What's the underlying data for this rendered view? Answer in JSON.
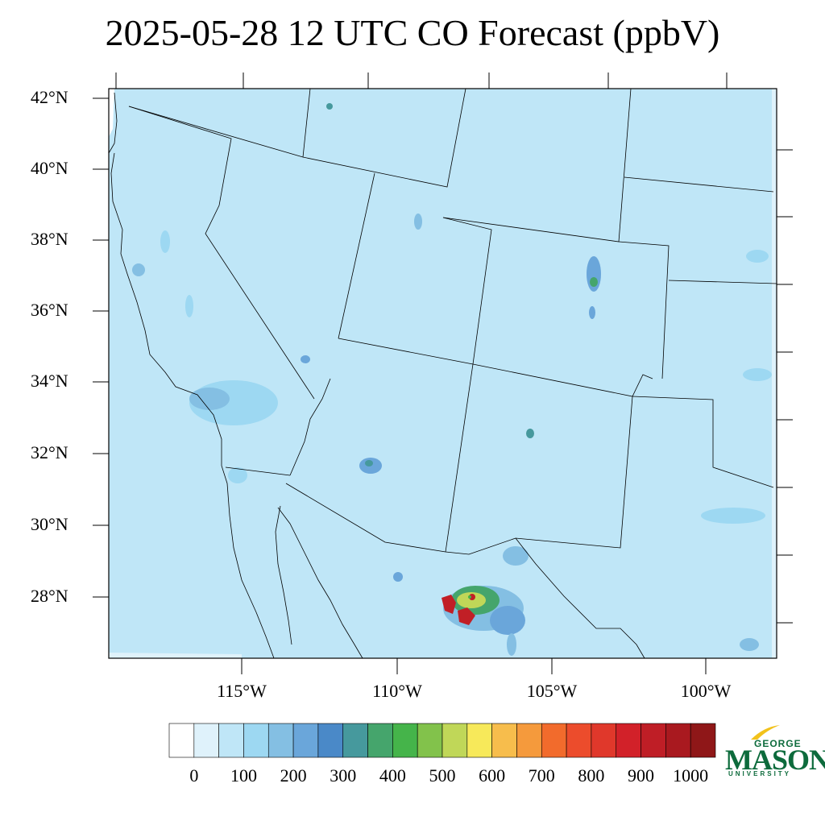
{
  "title": "2025-05-28 12 UTC CO Forecast (ppbV)",
  "axes": {
    "lat_labels": [
      "42°N",
      "40°N",
      "38°N",
      "36°N",
      "34°N",
      "32°N",
      "30°N",
      "28°N"
    ],
    "lon_labels": [
      "115°W",
      "110°W",
      "105°W",
      "100°W"
    ]
  },
  "colorbar": {
    "labels": [
      "0",
      "100",
      "200",
      "300",
      "400",
      "500",
      "600",
      "700",
      "800",
      "900",
      "1000"
    ],
    "colors": [
      "#ffffff",
      "#dff2fb",
      "#bfe6f7",
      "#9dd8f2",
      "#84bfe3",
      "#6aa6da",
      "#4a89c8",
      "#46999d",
      "#45a56c",
      "#45b44a",
      "#82c24b",
      "#c0d758",
      "#f7e95a",
      "#f7bd4c",
      "#f59a3c",
      "#f26b2c",
      "#ec4c2c",
      "#e0382b",
      "#d22129",
      "#bf1e26",
      "#a9191f",
      "#8f1718"
    ]
  },
  "map": {
    "background_color": "#bfe6f7",
    "hotspot_color": "#c11f26"
  },
  "logo": {
    "line1": "GEORGE",
    "line2": "MASON",
    "line3": "UNIVERSITY"
  }
}
